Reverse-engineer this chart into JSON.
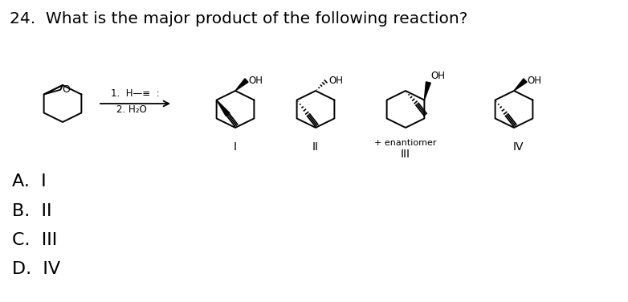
{
  "title": "24.  What is the major product of the following reaction?",
  "title_fontsize": 14.5,
  "background_color": "#ffffff",
  "choices": [
    "A.  I",
    "B.  II",
    "C.  III",
    "D.  IV"
  ],
  "choices_fontsize": 16,
  "reaction_label1": "1. H—≡  :",
  "reaction_label2": "2. H₂O",
  "roman_I": "I",
  "roman_II": "II",
  "roman_III": "III",
  "roman_IV": "IV",
  "enantiomer_text": "+ enantiomer"
}
